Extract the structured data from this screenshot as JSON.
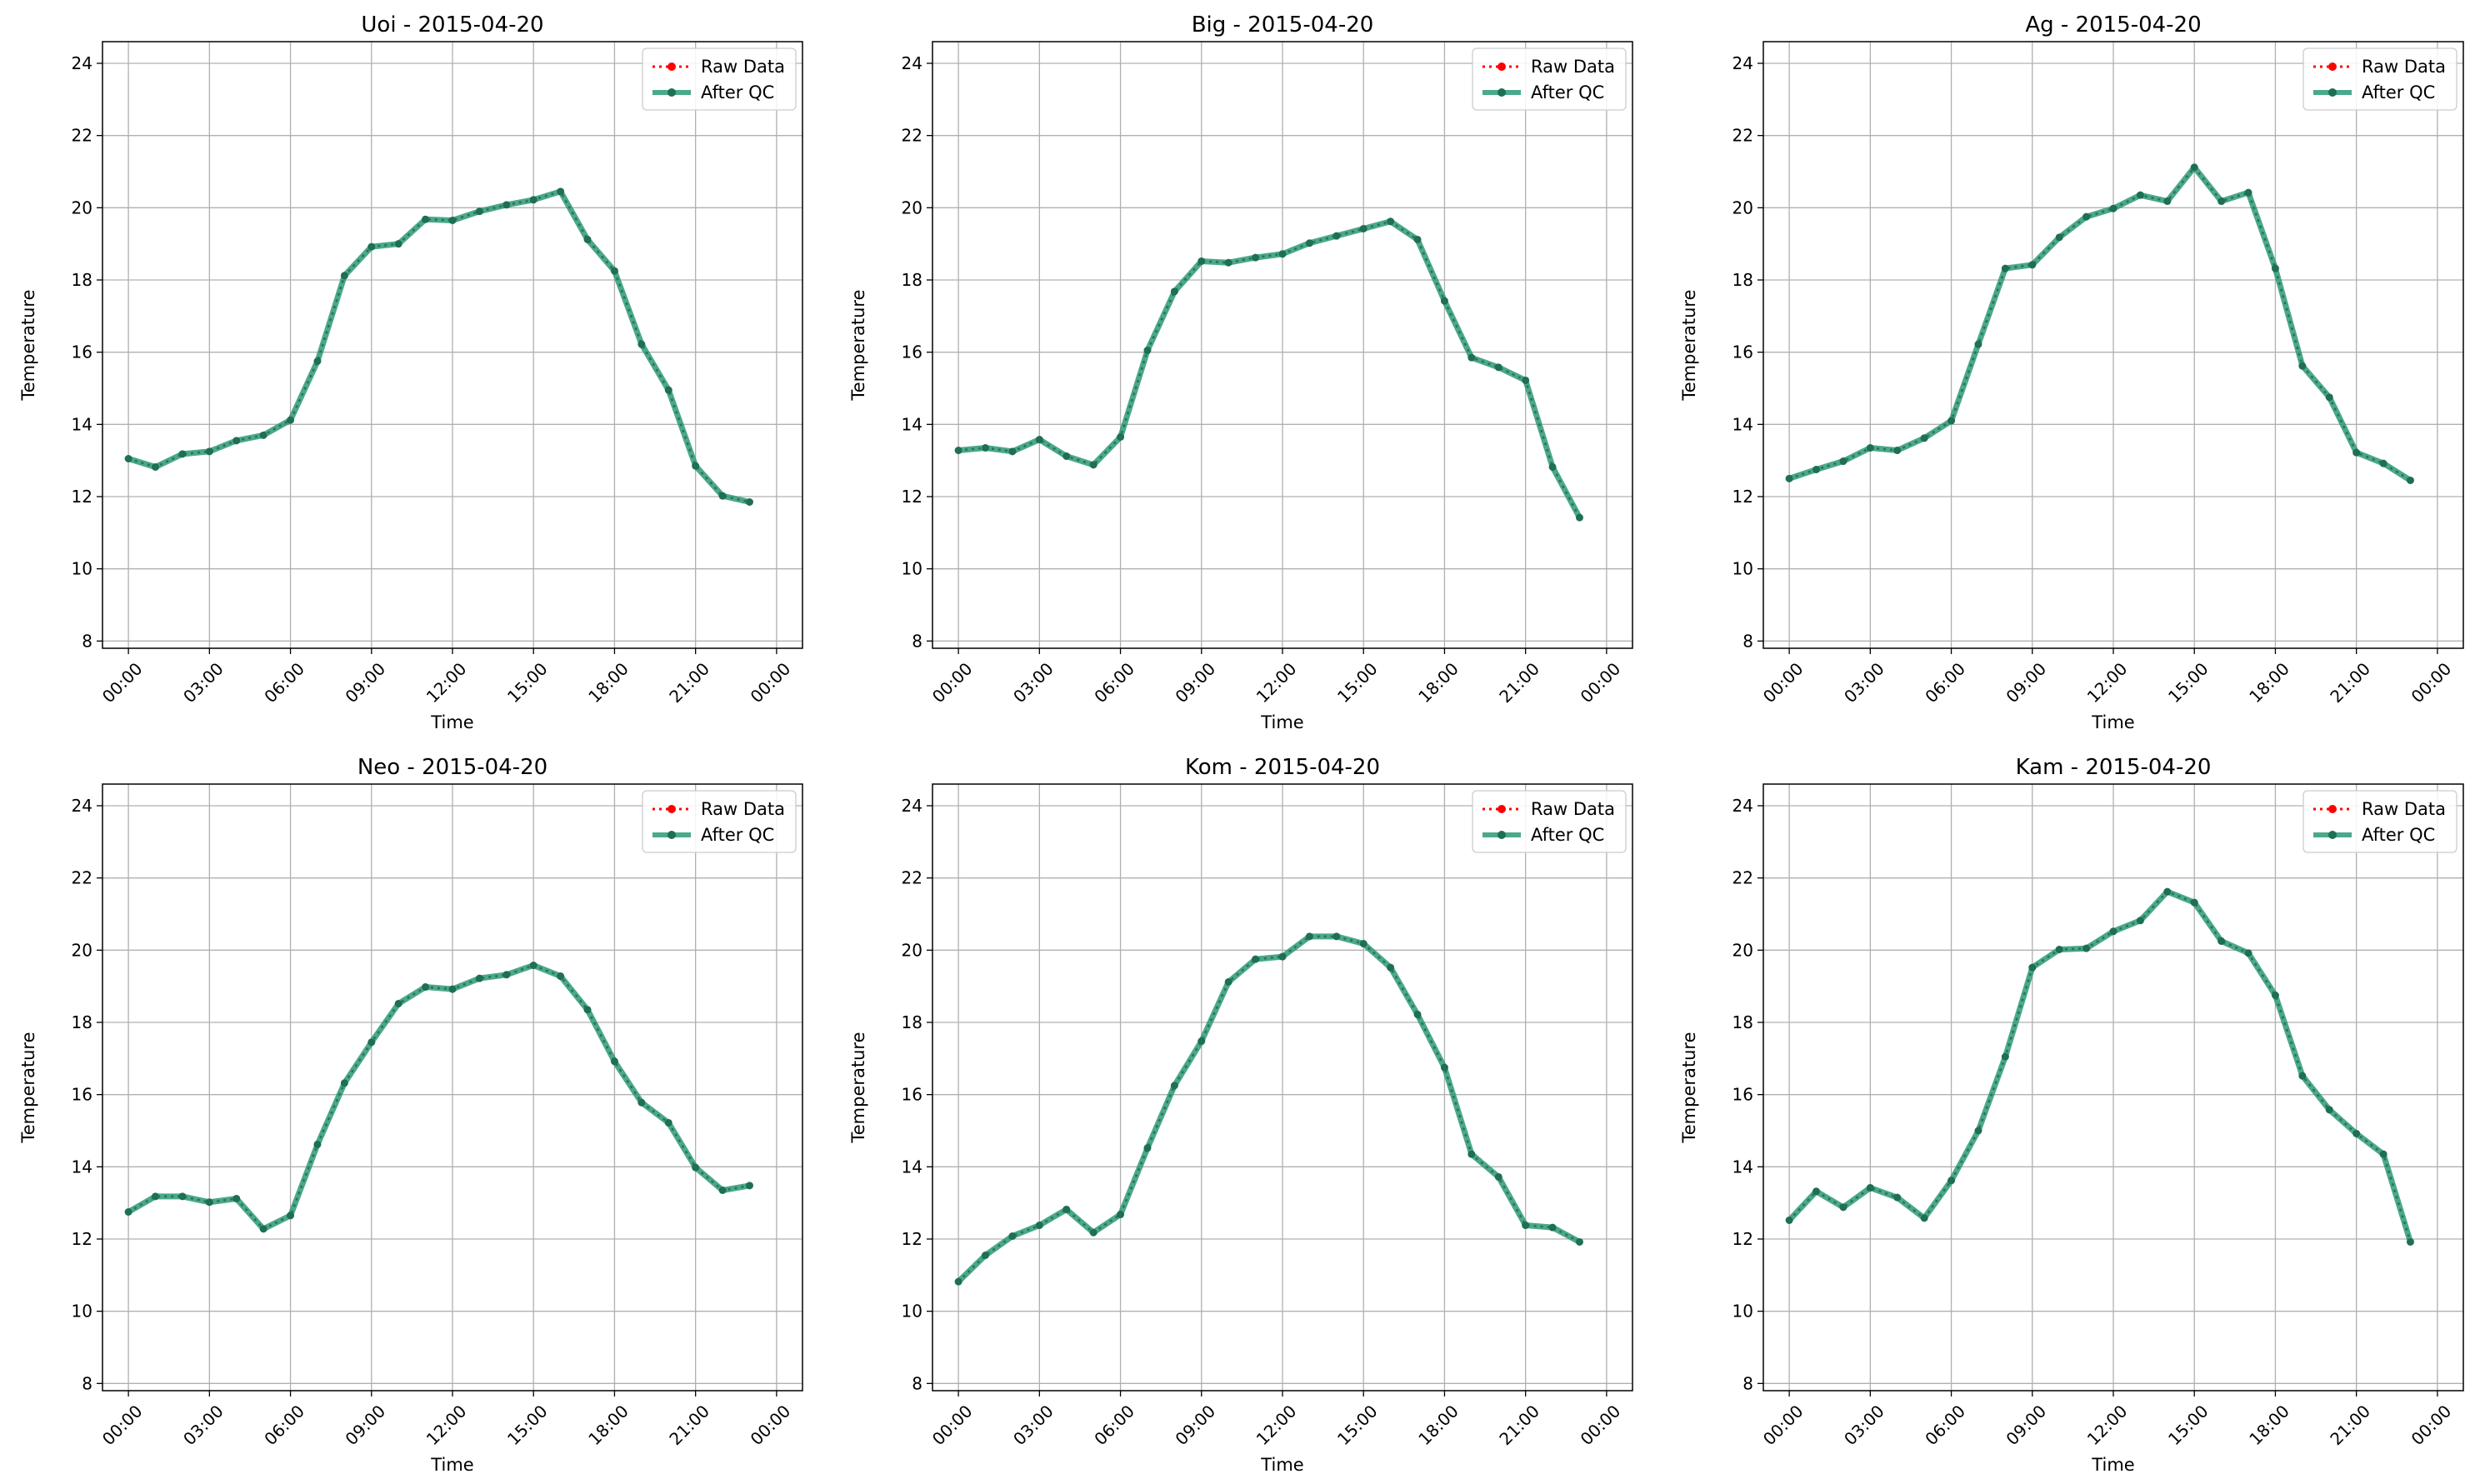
{
  "figure": {
    "xlabel": "Time",
    "ylabel": "Temperature",
    "legend": {
      "raw_label": "Raw Data",
      "qc_label": "After QC",
      "placement": "upper-right"
    },
    "colors": {
      "raw": "#ff0000",
      "qc": "#2a9a78",
      "qc_marker": "#1f6f52",
      "grid": "#b0b0b0"
    }
  },
  "chart_data": [
    {
      "type": "line",
      "title": "Uoi - 2015-04-20",
      "xlabel": "Time",
      "ylabel": "Temperature",
      "x_ticks": [
        "00:00",
        "03:00",
        "06:00",
        "09:00",
        "12:00",
        "15:00",
        "18:00",
        "21:00",
        "00:00"
      ],
      "xlim": [
        "2015-04-20 00:00",
        "2015-04-21 00:00"
      ],
      "y_ticks": [
        8,
        10,
        12,
        14,
        16,
        18,
        20,
        22,
        24
      ],
      "ylim": [
        7.8,
        24.6
      ],
      "grid": true,
      "legend_position": "top-right",
      "x": [
        "00:00",
        "01:00",
        "02:00",
        "03:00",
        "04:00",
        "05:00",
        "06:00",
        "07:00",
        "08:00",
        "09:00",
        "10:00",
        "11:00",
        "12:00",
        "13:00",
        "14:00",
        "15:00",
        "16:00",
        "17:00",
        "18:00",
        "19:00",
        "20:00",
        "21:00",
        "22:00",
        "23:00"
      ],
      "series": [
        {
          "name": "Raw Data",
          "values": [
            13.05,
            12.82,
            13.18,
            13.25,
            13.55,
            13.7,
            14.12,
            15.75,
            18.12,
            18.92,
            19.0,
            19.68,
            19.65,
            19.9,
            20.08,
            20.22,
            20.45,
            19.12,
            18.25,
            16.22,
            14.95,
            12.85,
            12.02,
            11.85
          ]
        },
        {
          "name": "After QC",
          "values": [
            13.05,
            12.82,
            13.18,
            13.25,
            13.55,
            13.7,
            14.12,
            15.75,
            18.12,
            18.92,
            19.0,
            19.68,
            19.65,
            19.9,
            20.08,
            20.22,
            20.45,
            19.12,
            18.25,
            16.22,
            14.95,
            12.85,
            12.02,
            11.85
          ]
        }
      ]
    },
    {
      "type": "line",
      "title": "Big - 2015-04-20",
      "xlabel": "Time",
      "ylabel": "Temperature",
      "x_ticks": [
        "00:00",
        "03:00",
        "06:00",
        "09:00",
        "12:00",
        "15:00",
        "18:00",
        "21:00",
        "00:00"
      ],
      "xlim": [
        "2015-04-20 00:00",
        "2015-04-21 00:00"
      ],
      "y_ticks": [
        8,
        10,
        12,
        14,
        16,
        18,
        20,
        22,
        24
      ],
      "ylim": [
        7.8,
        24.6
      ],
      "grid": true,
      "legend_position": "top-right",
      "x": [
        "00:00",
        "01:00",
        "02:00",
        "03:00",
        "04:00",
        "05:00",
        "06:00",
        "07:00",
        "08:00",
        "09:00",
        "10:00",
        "11:00",
        "12:00",
        "13:00",
        "14:00",
        "15:00",
        "16:00",
        "17:00",
        "18:00",
        "19:00",
        "20:00",
        "21:00",
        "22:00",
        "23:00"
      ],
      "series": [
        {
          "name": "Raw Data",
          "values": [
            13.28,
            13.35,
            13.25,
            13.58,
            13.12,
            12.88,
            13.65,
            16.05,
            17.68,
            18.52,
            18.48,
            18.62,
            18.72,
            19.02,
            19.22,
            19.42,
            19.62,
            19.12,
            17.42,
            15.85,
            15.58,
            15.22,
            12.82,
            11.42
          ]
        },
        {
          "name": "After QC",
          "values": [
            13.28,
            13.35,
            13.25,
            13.58,
            13.12,
            12.88,
            13.65,
            16.05,
            17.68,
            18.52,
            18.48,
            18.62,
            18.72,
            19.02,
            19.22,
            19.42,
            19.62,
            19.12,
            17.42,
            15.85,
            15.58,
            15.22,
            12.82,
            11.42
          ]
        }
      ]
    },
    {
      "type": "line",
      "title": "Ag - 2015-04-20",
      "xlabel": "Time",
      "ylabel": "Temperature",
      "x_ticks": [
        "00:00",
        "03:00",
        "06:00",
        "09:00",
        "12:00",
        "15:00",
        "18:00",
        "21:00",
        "00:00"
      ],
      "xlim": [
        "2015-04-20 00:00",
        "2015-04-21 00:00"
      ],
      "y_ticks": [
        8,
        10,
        12,
        14,
        16,
        18,
        20,
        22,
        24
      ],
      "ylim": [
        7.8,
        24.6
      ],
      "grid": true,
      "legend_position": "top-right",
      "x": [
        "00:00",
        "01:00",
        "02:00",
        "03:00",
        "04:00",
        "05:00",
        "06:00",
        "07:00",
        "08:00",
        "09:00",
        "10:00",
        "11:00",
        "12:00",
        "13:00",
        "14:00",
        "15:00",
        "16:00",
        "17:00",
        "18:00",
        "19:00",
        "20:00",
        "21:00",
        "22:00",
        "23:00"
      ],
      "series": [
        {
          "name": "Raw Data",
          "values": [
            12.5,
            12.75,
            12.98,
            13.35,
            13.28,
            13.62,
            14.1,
            16.22,
            18.32,
            18.42,
            19.18,
            19.75,
            19.98,
            20.35,
            20.18,
            21.12,
            20.18,
            20.42,
            18.32,
            15.62,
            14.75,
            13.22,
            12.92,
            12.45
          ]
        },
        {
          "name": "After QC",
          "values": [
            12.5,
            12.75,
            12.98,
            13.35,
            13.28,
            13.62,
            14.1,
            16.22,
            18.32,
            18.42,
            19.18,
            19.75,
            19.98,
            20.35,
            20.18,
            21.12,
            20.18,
            20.42,
            18.32,
            15.62,
            14.75,
            13.22,
            12.92,
            12.45
          ]
        }
      ]
    },
    {
      "type": "line",
      "title": "Neo - 2015-04-20",
      "xlabel": "Time",
      "ylabel": "Temperature",
      "x_ticks": [
        "00:00",
        "03:00",
        "06:00",
        "09:00",
        "12:00",
        "15:00",
        "18:00",
        "21:00",
        "00:00"
      ],
      "xlim": [
        "2015-04-20 00:00",
        "2015-04-21 00:00"
      ],
      "y_ticks": [
        8,
        10,
        12,
        14,
        16,
        18,
        20,
        22,
        24
      ],
      "ylim": [
        7.8,
        24.6
      ],
      "grid": true,
      "legend_position": "top-right",
      "x": [
        "00:00",
        "01:00",
        "02:00",
        "03:00",
        "04:00",
        "05:00",
        "06:00",
        "07:00",
        "08:00",
        "09:00",
        "10:00",
        "11:00",
        "12:00",
        "13:00",
        "14:00",
        "15:00",
        "16:00",
        "17:00",
        "18:00",
        "19:00",
        "20:00",
        "21:00",
        "22:00",
        "23:00"
      ],
      "series": [
        {
          "name": "Raw Data",
          "values": [
            12.75,
            13.18,
            13.18,
            13.02,
            13.12,
            12.28,
            12.65,
            14.62,
            16.32,
            17.45,
            18.52,
            18.98,
            18.92,
            19.22,
            19.32,
            19.58,
            19.28,
            18.35,
            16.92,
            15.78,
            15.22,
            13.98,
            13.35,
            13.48
          ]
        },
        {
          "name": "After QC",
          "values": [
            12.75,
            13.18,
            13.18,
            13.02,
            13.12,
            12.28,
            12.65,
            14.62,
            16.32,
            17.45,
            18.52,
            18.98,
            18.92,
            19.22,
            19.32,
            19.58,
            19.28,
            18.35,
            16.92,
            15.78,
            15.22,
            13.98,
            13.35,
            13.48
          ]
        }
      ]
    },
    {
      "type": "line",
      "title": "Kom - 2015-04-20",
      "xlabel": "Time",
      "ylabel": "Temperature",
      "x_ticks": [
        "00:00",
        "03:00",
        "06:00",
        "09:00",
        "12:00",
        "15:00",
        "18:00",
        "21:00",
        "00:00"
      ],
      "xlim": [
        "2015-04-20 00:00",
        "2015-04-21 00:00"
      ],
      "y_ticks": [
        8,
        10,
        12,
        14,
        16,
        18,
        20,
        22,
        24
      ],
      "ylim": [
        7.8,
        24.6
      ],
      "grid": true,
      "legend_position": "top-right",
      "x": [
        "00:00",
        "01:00",
        "02:00",
        "03:00",
        "04:00",
        "05:00",
        "06:00",
        "07:00",
        "08:00",
        "09:00",
        "10:00",
        "11:00",
        "12:00",
        "13:00",
        "14:00",
        "15:00",
        "16:00",
        "17:00",
        "18:00",
        "19:00",
        "20:00",
        "21:00",
        "22:00",
        "23:00"
      ],
      "series": [
        {
          "name": "Raw Data",
          "values": [
            10.82,
            11.55,
            12.08,
            12.38,
            12.82,
            12.18,
            12.68,
            14.52,
            16.25,
            17.48,
            19.12,
            19.75,
            19.82,
            20.38,
            20.38,
            20.18,
            19.52,
            18.22,
            16.75,
            14.35,
            13.72,
            12.38,
            12.32,
            11.92
          ]
        },
        {
          "name": "After QC",
          "values": [
            10.82,
            11.55,
            12.08,
            12.38,
            12.82,
            12.18,
            12.68,
            14.52,
            16.25,
            17.48,
            19.12,
            19.75,
            19.82,
            20.38,
            20.38,
            20.18,
            19.52,
            18.22,
            16.75,
            14.35,
            13.72,
            12.38,
            12.32,
            11.92
          ]
        }
      ]
    },
    {
      "type": "line",
      "title": "Kam - 2015-04-20",
      "xlabel": "Time",
      "ylabel": "Temperature",
      "x_ticks": [
        "00:00",
        "03:00",
        "06:00",
        "09:00",
        "12:00",
        "15:00",
        "18:00",
        "21:00",
        "00:00"
      ],
      "xlim": [
        "2015-04-20 00:00",
        "2015-04-21 00:00"
      ],
      "y_ticks": [
        8,
        10,
        12,
        14,
        16,
        18,
        20,
        22,
        24
      ],
      "ylim": [
        7.8,
        24.6
      ],
      "grid": true,
      "legend_position": "top-right",
      "x": [
        "00:00",
        "01:00",
        "02:00",
        "03:00",
        "04:00",
        "05:00",
        "06:00",
        "07:00",
        "08:00",
        "09:00",
        "10:00",
        "11:00",
        "12:00",
        "13:00",
        "14:00",
        "15:00",
        "16:00",
        "17:00",
        "18:00",
        "19:00",
        "20:00",
        "21:00",
        "22:00",
        "23:00"
      ],
      "series": [
        {
          "name": "Raw Data",
          "values": [
            12.52,
            13.32,
            12.88,
            13.42,
            13.15,
            12.58,
            13.62,
            15.0,
            17.05,
            19.52,
            20.02,
            20.05,
            20.52,
            20.82,
            21.62,
            21.32,
            20.25,
            19.92,
            18.75,
            16.52,
            15.58,
            14.92,
            14.35,
            11.92
          ]
        },
        {
          "name": "After QC",
          "values": [
            12.52,
            13.32,
            12.88,
            13.42,
            13.15,
            12.58,
            13.62,
            15.0,
            17.05,
            19.52,
            20.02,
            20.05,
            20.52,
            20.82,
            21.62,
            21.32,
            20.25,
            19.92,
            18.75,
            16.52,
            15.58,
            14.92,
            14.35,
            11.92
          ]
        }
      ]
    }
  ]
}
